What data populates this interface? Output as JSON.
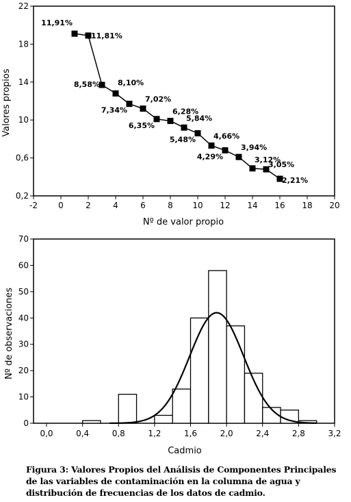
{
  "chart_data": [
    {
      "type": "line",
      "title": "",
      "xlabel": "Nº de valor propio",
      "ylabel": "Valores propios",
      "xlim": [
        -2,
        20
      ],
      "x_ticks": [
        "-2",
        "0",
        "2",
        "4",
        "6",
        "8",
        "10",
        "12",
        "14",
        "16",
        "18",
        "20"
      ],
      "y_ticks": [
        "0,2",
        "0,6",
        "10",
        "14",
        "18",
        "22"
      ],
      "grid": false,
      "series": [
        {
          "x": [
            1,
            2,
            3,
            4,
            5,
            6,
            7,
            8,
            9,
            10,
            11,
            12,
            13,
            14,
            15,
            16
          ],
          "values": [
            19.1,
            18.9,
            13.7,
            12.8,
            11.7,
            11.2,
            10.1,
            9.9,
            9.2,
            8.6,
            7.3,
            6.8,
            6.1,
            4.9,
            4.8,
            3.8
          ],
          "labels": [
            "11,91%",
            "11,81%",
            "8,58%",
            "8,10%",
            "7,34%",
            "7,02%",
            "6,35%",
            "6,28%",
            "5,84%",
            "5,48%",
            "4,66%",
            "4,29%",
            "3,94%",
            "3,12%",
            "3,05%",
            "2,21%"
          ]
        }
      ]
    },
    {
      "type": "bar",
      "title": "",
      "xlabel": "Cadmio",
      "ylabel": "Nº de observaciones",
      "xlim": [
        0.0,
        3.2
      ],
      "ylim": [
        0,
        70
      ],
      "x_ticks": [
        "0,0",
        "0,4",
        "0,8",
        "1,2",
        "1,6",
        "2,0",
        "2,4",
        "2,8",
        "3,2"
      ],
      "y_ticks": [
        "0",
        "10",
        "20",
        "30",
        "40",
        "50",
        "60",
        "70"
      ],
      "grid": false,
      "bins": [
        {
          "start": 0.4,
          "end": 0.6,
          "count": 1
        },
        {
          "start": 0.6,
          "end": 0.8,
          "count": 0
        },
        {
          "start": 0.8,
          "end": 1.0,
          "count": 11
        },
        {
          "start": 1.0,
          "end": 1.2,
          "count": 0
        },
        {
          "start": 1.2,
          "end": 1.4,
          "count": 3
        },
        {
          "start": 1.4,
          "end": 1.6,
          "count": 13
        },
        {
          "start": 1.6,
          "end": 1.8,
          "count": 40
        },
        {
          "start": 1.8,
          "end": 2.0,
          "count": 58
        },
        {
          "start": 2.0,
          "end": 2.2,
          "count": 37
        },
        {
          "start": 2.2,
          "end": 2.4,
          "count": 19
        },
        {
          "start": 2.4,
          "end": 2.6,
          "count": 6
        },
        {
          "start": 2.6,
          "end": 2.8,
          "count": 5
        },
        {
          "start": 2.8,
          "end": 3.0,
          "count": 1
        }
      ],
      "normal_curve": {
        "mean": 1.89,
        "sd": 0.3,
        "peak": 42
      }
    }
  ],
  "caption": "Figura 3: Valores Propios del Análisis de Componentes Principales de las variables de contaminación en la columna de agua y distribución de frecuencias de los datos de cadmio."
}
